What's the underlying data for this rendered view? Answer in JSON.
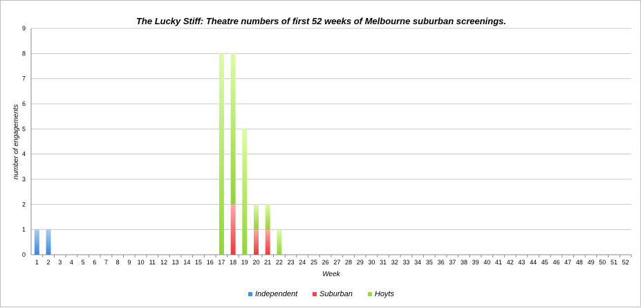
{
  "chart_data": {
    "type": "bar",
    "stacked": true,
    "title": "The Lucky Stiff: Theatre numbers of first 52 weeks of Melbourne suburban screenings.",
    "xlabel": "Week",
    "ylabel": "number of engagements",
    "ylim": [
      0,
      9
    ],
    "yticks": [
      0,
      1,
      2,
      3,
      4,
      5,
      6,
      7,
      8,
      9
    ],
    "grid": true,
    "legend": "bottom",
    "categories": [
      1,
      2,
      3,
      4,
      5,
      6,
      7,
      8,
      9,
      10,
      11,
      12,
      13,
      14,
      15,
      16,
      17,
      18,
      19,
      20,
      21,
      22,
      23,
      24,
      25,
      26,
      27,
      28,
      29,
      30,
      31,
      32,
      33,
      34,
      35,
      36,
      37,
      38,
      39,
      40,
      41,
      42,
      43,
      44,
      45,
      46,
      47,
      48,
      49,
      50,
      51,
      52
    ],
    "series": [
      {
        "name": "Independent",
        "color": "#4a90d9",
        "values": {
          "1": 1,
          "2": 1
        }
      },
      {
        "name": "Suburban",
        "color": "#e84a4a",
        "values": {
          "18": 2,
          "20": 1,
          "21": 1
        }
      },
      {
        "name": "Hoyts",
        "color": "#9ed64a",
        "values": {
          "17": 8,
          "18": 6,
          "19": 5,
          "20": 1,
          "21": 1,
          "22": 1
        }
      }
    ]
  }
}
